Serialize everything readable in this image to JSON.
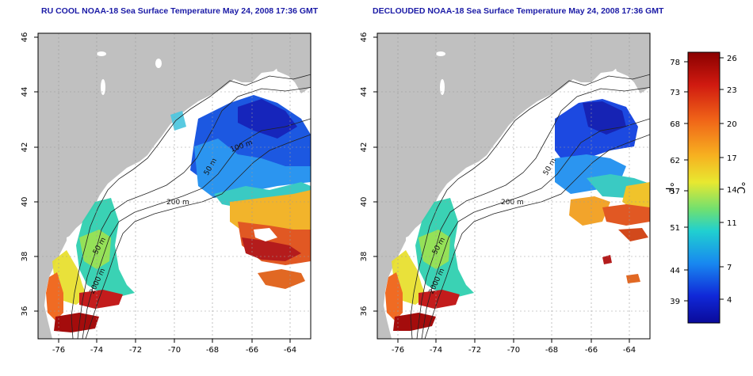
{
  "panels": [
    {
      "title": "RU COOL NOAA-18 Sea Surface Temperature May 24, 2008 17:36 GMT",
      "contour_labels": [
        "100 m",
        "50 m",
        "200 m",
        "50 m",
        "2000 m"
      ]
    },
    {
      "title": "DECLOUDED NOAA-18 Sea Surface Temperature May 24, 2008 17:36 GMT",
      "contour_labels": [
        "50 m",
        "200 m",
        "50 m",
        "2000 m"
      ]
    }
  ],
  "x_ticks": [
    "-76",
    "-74",
    "-72",
    "-70",
    "-68",
    "-66",
    "-64"
  ],
  "y_ticks": [
    "36",
    "38",
    "40",
    "42",
    "44",
    "46"
  ],
  "colorbar": {
    "f_label": "°F",
    "c_label": "°C",
    "f_ticks": [
      "78",
      "73",
      "68",
      "62",
      "57",
      "51",
      "44",
      "39"
    ],
    "c_ticks": [
      "26",
      "23",
      "20",
      "17",
      "14",
      "11",
      "7",
      "4"
    ],
    "colors": [
      "#a50000",
      "#e03010",
      "#f58a1a",
      "#f7d020",
      "#9be040",
      "#30d0b0",
      "#20a0f0",
      "#1040e0",
      "#0a0ab0"
    ]
  }
}
